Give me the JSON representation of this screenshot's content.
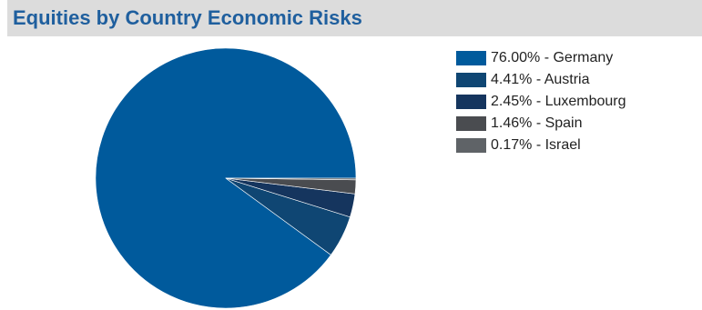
{
  "header": {
    "title": "Equities by Country Economic Risks"
  },
  "chart_data": {
    "type": "pie",
    "start_angle_deg": 0,
    "direction": "counterclockwise",
    "slices": [
      {
        "label": "76.00% - Germany",
        "value": 76.0,
        "color": "#005a9c"
      },
      {
        "label": "4.41% - Austria",
        "value": 4.41,
        "color": "#0f4673"
      },
      {
        "label": "2.45% - Luxembourg",
        "value": 2.45,
        "color": "#15355e"
      },
      {
        "label": "1.46% - Spain",
        "value": 1.46,
        "color": "#4a4c50"
      },
      {
        "label": "0.17% - Israel",
        "value": 0.17,
        "color": "#5f6367"
      }
    ],
    "legend_position": "right"
  }
}
